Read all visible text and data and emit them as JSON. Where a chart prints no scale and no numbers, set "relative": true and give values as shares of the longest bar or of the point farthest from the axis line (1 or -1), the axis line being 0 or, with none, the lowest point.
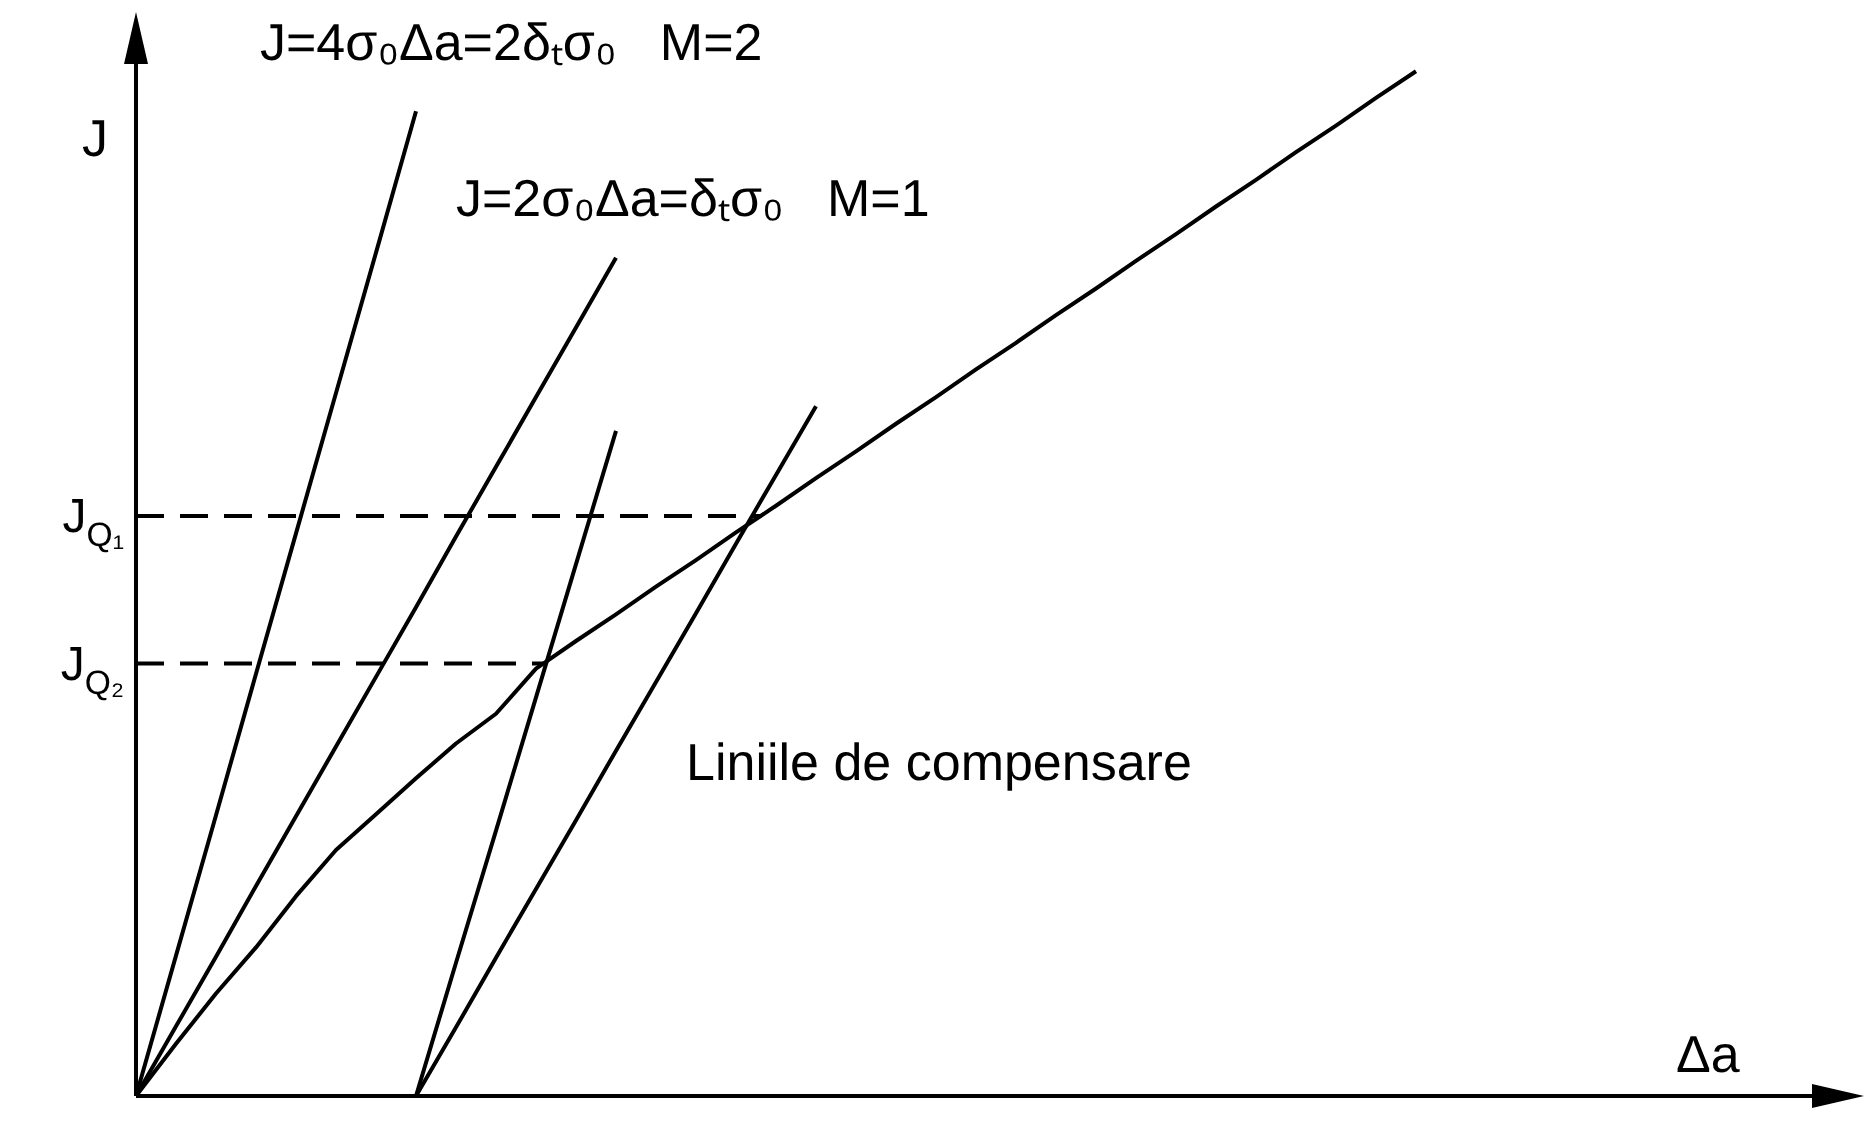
{
  "chart_data": {
    "type": "line",
    "relative": true,
    "xlabel": "Δa",
    "ylabel": "J",
    "legend": false,
    "marker": "none",
    "line_style": "solid",
    "categories": [
      null,
      null,
      null,
      null,
      null,
      null,
      null,
      null,
      null,
      null,
      null,
      null,
      null,
      null,
      null,
      null,
      null,
      null,
      null,
      null,
      null,
      null,
      null,
      null,
      null,
      null,
      null,
      null,
      null,
      null,
      null,
      null,
      null,
      null,
      null,
      null,
      null,
      null,
      null,
      null,
      null,
      null,
      null,
      null
    ],
    "series": [
      {
        "color": "#000000",
        "values": [
          0,
          0.137,
          0.274,
          0.412,
          0.549,
          0.686,
          0.823,
          0.961,
          null,
          null,
          null,
          null,
          null,
          null,
          null,
          null,
          null,
          null,
          null,
          null,
          null,
          null,
          null,
          null,
          null,
          null,
          null,
          null,
          null,
          null,
          null,
          null,
          null,
          null,
          null,
          null,
          null,
          null,
          null,
          null,
          null,
          null,
          null,
          null
        ]
      },
      {
        "color": "#000000",
        "values": [
          0,
          0.068,
          0.136,
          0.205,
          0.273,
          0.341,
          0.409,
          0.477,
          0.546,
          0.614,
          0.682,
          0.75,
          0.818,
          null,
          null,
          null,
          null,
          null,
          null,
          null,
          null,
          null,
          null,
          null,
          null,
          null,
          null,
          null,
          null,
          null,
          null,
          null,
          null,
          null,
          null,
          null,
          null,
          null,
          null,
          null,
          null,
          null,
          null,
          null
        ]
      },
      {
        "color": "#000000",
        "values": [
          null,
          null,
          null,
          null,
          null,
          null,
          null,
          0,
          0.13,
          0.259,
          0.389,
          0.519,
          0.649,
          null,
          null,
          null,
          null,
          null,
          null,
          null,
          null,
          null,
          null,
          null,
          null,
          null,
          null,
          null,
          null,
          null,
          null,
          null,
          null,
          null,
          null,
          null,
          null,
          null,
          null,
          null,
          null,
          null,
          null,
          null
        ]
      },
      {
        "color": "#000000",
        "values": [
          null,
          null,
          null,
          null,
          null,
          null,
          null,
          0,
          0.067,
          0.135,
          0.202,
          0.269,
          0.337,
          0.404,
          0.471,
          0.539,
          0.606,
          0.673,
          null,
          null,
          null,
          null,
          null,
          null,
          null,
          null,
          null,
          null,
          null,
          null,
          null,
          null,
          null,
          null,
          null,
          null,
          null,
          null,
          null,
          null,
          null,
          null,
          null,
          null
        ]
      },
      {
        "color": "#000000",
        "values": [
          0,
          0.051,
          0.1,
          0.145,
          0.195,
          0.24,
          0.275,
          0.31,
          0.344,
          0.373,
          0.417,
          0.444,
          0.47,
          0.497,
          0.523,
          0.55,
          0.576,
          0.603,
          0.629,
          0.656,
          0.682,
          0.709,
          0.735,
          0.762,
          0.788,
          0.815,
          0.841,
          0.868,
          0.894,
          0.921,
          0.947,
          0.974,
          1,
          null,
          null,
          null,
          null,
          null,
          null,
          null,
          null,
          null,
          null,
          null
        ]
      }
    ],
    "ref_lines": [
      {
        "axis": "y",
        "value": 0.566,
        "label": "J$_{Q₁}$",
        "line_style": "dashed",
        "color": "#000000"
      },
      {
        "axis": "y",
        "value": 0.422,
        "label": "J$_{Q₂}$",
        "line_style": "dashed",
        "color": "#000000"
      }
    ],
    "annotations": [
      "J=4σ₀Δa=2δₜσ₀   M=2",
      "J=2σ₀Δa=δₜσ₀   M=1",
      "Liniile de compensare"
    ]
  }
}
